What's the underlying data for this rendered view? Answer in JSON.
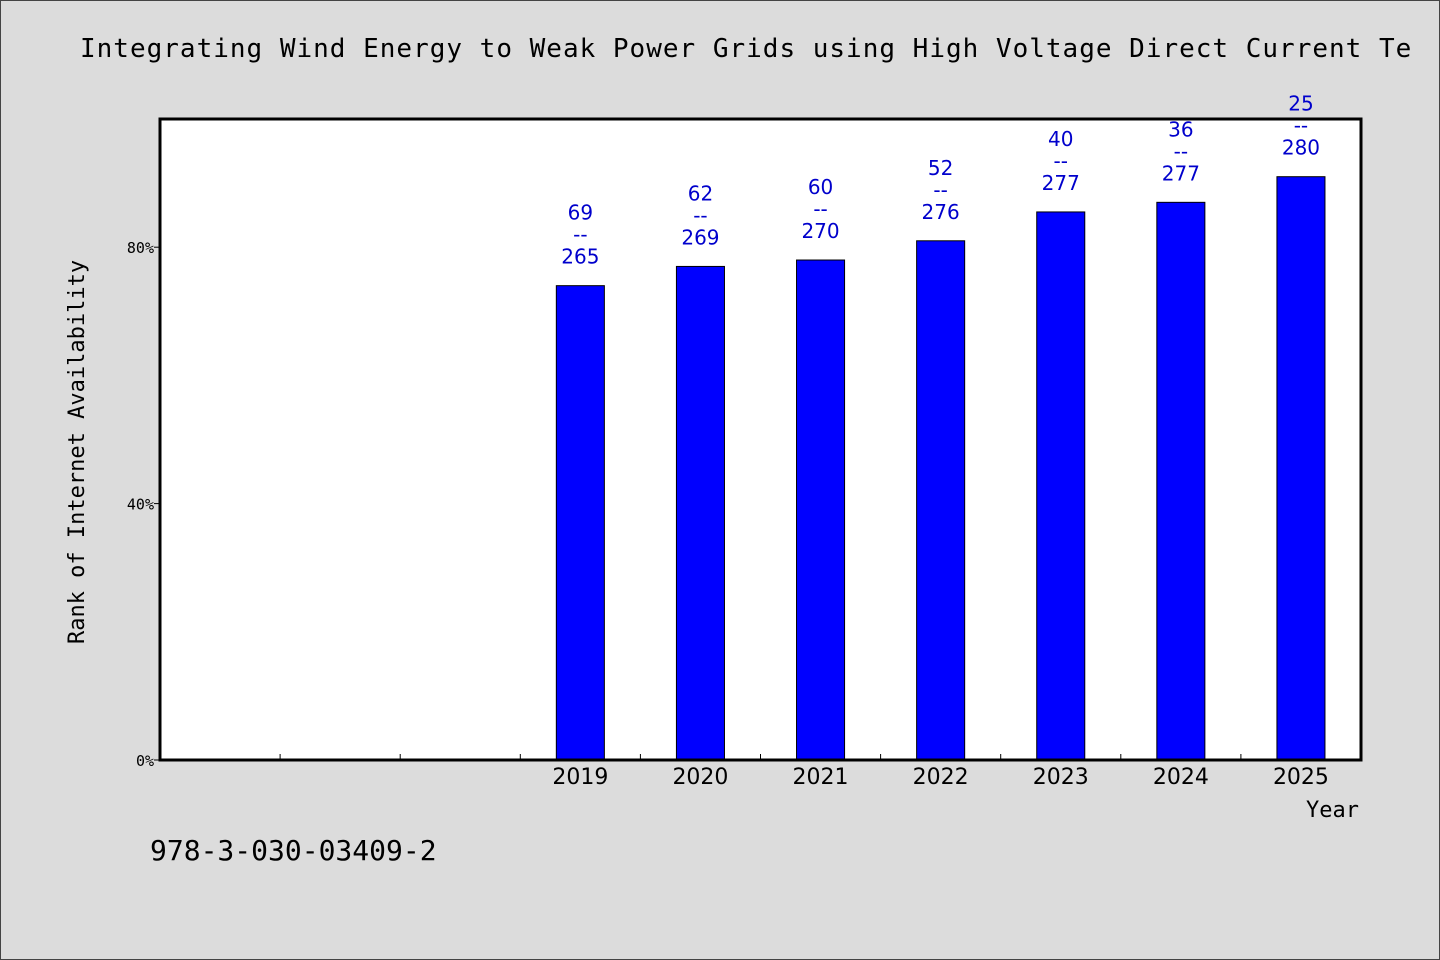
{
  "chart_data": {
    "type": "bar",
    "title": "Integrating Wind Energy to Weak Power Grids using High Voltage Direct Current Te",
    "xlabel": "Year",
    "ylabel": "Rank of Internet Availability",
    "x_slots": [
      "",
      "",
      "",
      "2019",
      "2020",
      "2021",
      "2022",
      "2023",
      "2024",
      "2025"
    ],
    "categories": [
      "2019",
      "2020",
      "2021",
      "2022",
      "2023",
      "2024",
      "2025"
    ],
    "values": [
      74,
      77,
      78,
      81,
      85.5,
      87,
      91
    ],
    "value_unit": "%",
    "data_labels": [
      {
        "top": "69",
        "sep": "--",
        "bottom": "265"
      },
      {
        "top": "62",
        "sep": "--",
        "bottom": "269"
      },
      {
        "top": "60",
        "sep": "--",
        "bottom": "270"
      },
      {
        "top": "52",
        "sep": "--",
        "bottom": "276"
      },
      {
        "top": "40",
        "sep": "--",
        "bottom": "277"
      },
      {
        "top": "36",
        "sep": "--",
        "bottom": "277"
      },
      {
        "top": "25",
        "sep": "--",
        "bottom": "280"
      }
    ],
    "ylim": [
      0,
      100
    ],
    "yticks": [
      0,
      40,
      80
    ],
    "ytick_labels": [
      "0%",
      "40%",
      "80%"
    ],
    "grid": false,
    "legend": "none",
    "colors": {
      "bar": "#0000ff",
      "label": "#0000cc",
      "plot_bg": "#ffffff",
      "page_bg": "#dcdcdc"
    }
  },
  "footer": {
    "isbn": "978-3-030-03409-2"
  }
}
